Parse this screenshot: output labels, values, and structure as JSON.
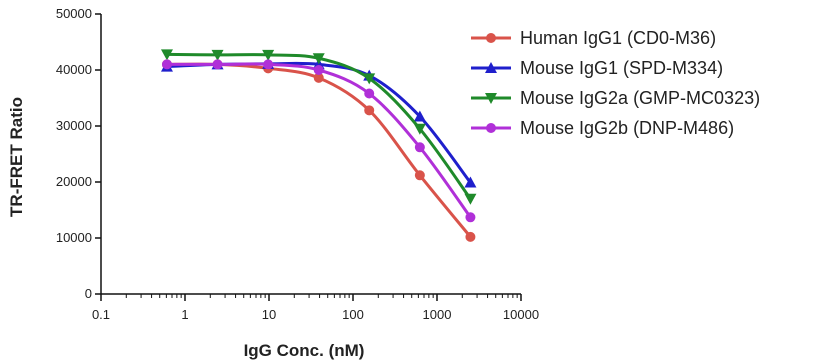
{
  "chart_data": {
    "type": "line",
    "xscale": "log",
    "xlabel": "IgG Conc. (nM)",
    "ylabel": "TR-FRET Ratio",
    "xlim": [
      0.1,
      10000
    ],
    "ylim": [
      0,
      50000
    ],
    "xticks": [
      "0.1",
      "1",
      "10",
      "100",
      "1000",
      "10000"
    ],
    "yticks": [
      "0",
      "10000",
      "20000",
      "30000",
      "40000",
      "50000"
    ],
    "legend_position": "top-right",
    "grid": false,
    "x": [
      0.61,
      2.44,
      9.77,
      39.1,
      156,
      625,
      2500
    ],
    "series": [
      {
        "name": "Human IgG1 (CD0-M36)",
        "marker": "circle",
        "color": "#d9534a",
        "values": [
          41000,
          41000,
          40300,
          38600,
          32800,
          21200,
          10200
        ]
      },
      {
        "name": "Mouse IgG1 (SPD-M334)",
        "marker": "triangle-up",
        "color": "#1f1fcc",
        "values": [
          40600,
          41000,
          41100,
          41000,
          39000,
          31700,
          19900
        ]
      },
      {
        "name": "Mouse IgG2a (GMP-MC0323)",
        "marker": "triangle-down",
        "color": "#1f8a2a",
        "values": [
          42800,
          42700,
          42700,
          42100,
          38500,
          29500,
          17000
        ]
      },
      {
        "name": "Mouse IgG2b (DNP-M486)",
        "marker": "circle",
        "color": "#b030d8",
        "values": [
          41000,
          41000,
          41000,
          40000,
          35800,
          26200,
          13700
        ]
      }
    ]
  }
}
